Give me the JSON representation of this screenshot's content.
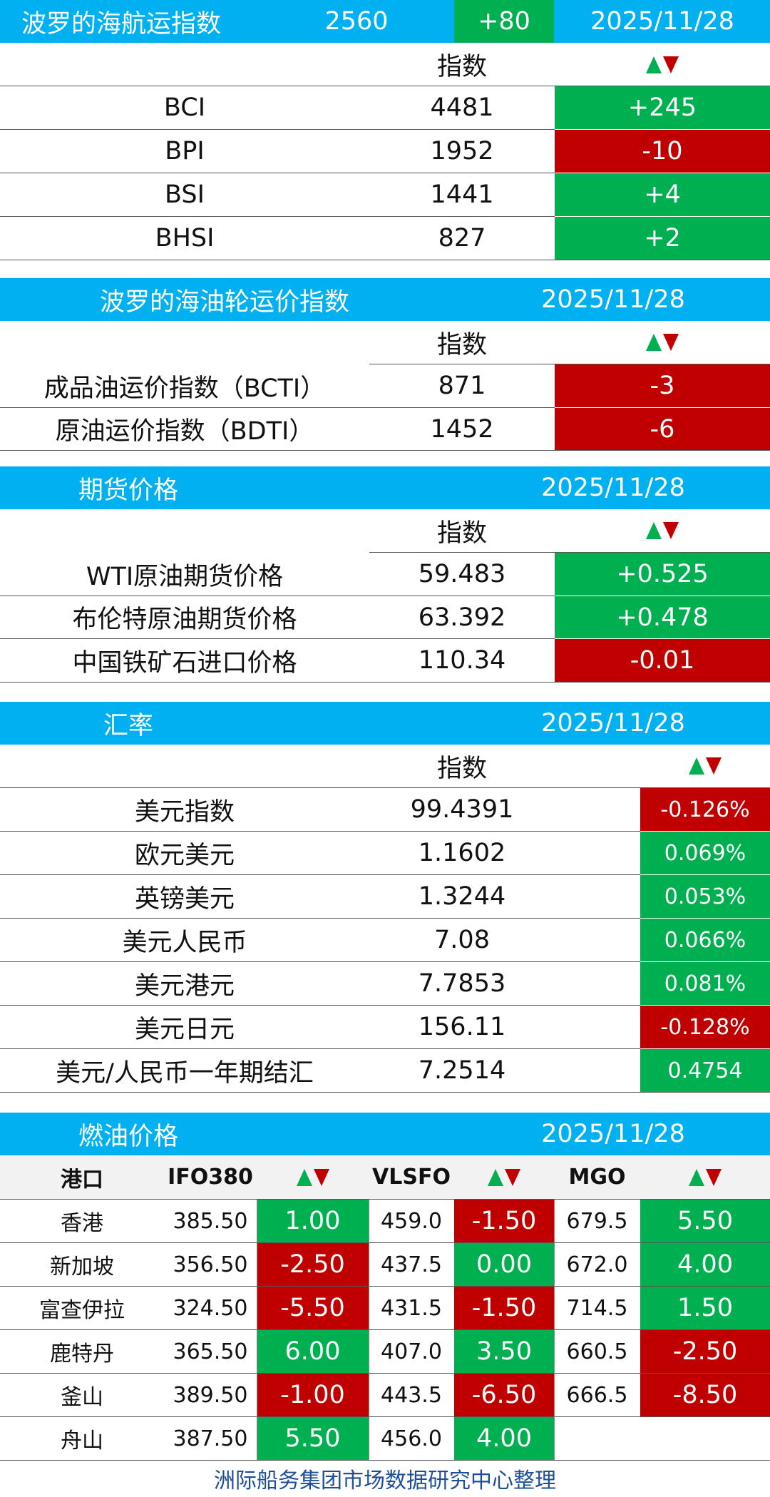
{
  "colors": {
    "header_bg": "#00b0f0",
    "up": "#00b050",
    "down": "#c00000",
    "footer_text": "#1f4e99"
  },
  "icons": {
    "change_indicator": "up-down-triangles-icon"
  },
  "column_label_index": "指数",
  "baltic_dry": {
    "title": "波罗的海航运指数",
    "value": "2560",
    "change": "+80",
    "date": "2025/11/28",
    "rows": [
      {
        "name": "BCI",
        "value": "4481",
        "change": "+245"
      },
      {
        "name": "BPI",
        "value": "1952",
        "change": "-10"
      },
      {
        "name": "BSI",
        "value": "1441",
        "change": "+4"
      },
      {
        "name": "BHSI",
        "value": "827",
        "change": "+2"
      }
    ]
  },
  "tanker": {
    "title": "波罗的海油轮运价指数",
    "date": "2025/11/28",
    "rows": [
      {
        "name": "成品油运价指数（BCTI）",
        "value": "871",
        "change": "-3"
      },
      {
        "name": "原油运价指数（BDTI）",
        "value": "1452",
        "change": "-6"
      }
    ]
  },
  "futures": {
    "title": "期货价格",
    "date": "2025/11/28",
    "rows": [
      {
        "name": "WTI原油期货价格",
        "value": "59.483",
        "change": "+0.525"
      },
      {
        "name": "布伦特原油期货价格",
        "value": "63.392",
        "change": "+0.478"
      },
      {
        "name": "中国铁矿石进口价格",
        "value": "110.34",
        "change": "-0.01"
      }
    ]
  },
  "fx": {
    "title": "汇率",
    "date": "2025/11/28",
    "rows": [
      {
        "name": "美元指数",
        "value": "99.4391",
        "change": "-0.126%"
      },
      {
        "name": "欧元美元",
        "value": "1.1602",
        "change": "0.069%"
      },
      {
        "name": "英镑美元",
        "value": "1.3244",
        "change": "0.053%"
      },
      {
        "name": "美元人民币",
        "value": "7.08",
        "change": "0.066%"
      },
      {
        "name": "美元港元",
        "value": "7.7853",
        "change": "0.081%"
      },
      {
        "name": "美元日元",
        "value": "156.11",
        "change": "-0.128%"
      },
      {
        "name": "美元/人民币一年期结汇",
        "value": "7.2514",
        "change": "0.4754"
      }
    ]
  },
  "bunker": {
    "title": "燃油价格",
    "date": "2025/11/28",
    "headers": {
      "port": "港口",
      "ifo": "IFO380",
      "vlsfo": "VLSFO",
      "mgo": "MGO"
    },
    "rows": [
      {
        "port": "香港",
        "ifo": "385.50",
        "ifo_chg": "1.00",
        "vlsfo": "459.0",
        "vlsfo_chg": "-1.50",
        "mgo": "679.5",
        "mgo_chg": "5.50"
      },
      {
        "port": "新加坡",
        "ifo": "356.50",
        "ifo_chg": "-2.50",
        "vlsfo": "437.5",
        "vlsfo_chg": "0.00",
        "mgo": "672.0",
        "mgo_chg": "4.00"
      },
      {
        "port": "富查伊拉",
        "ifo": "324.50",
        "ifo_chg": "-5.50",
        "vlsfo": "431.5",
        "vlsfo_chg": "-1.50",
        "mgo": "714.5",
        "mgo_chg": "1.50"
      },
      {
        "port": "鹿特丹",
        "ifo": "365.50",
        "ifo_chg": "6.00",
        "vlsfo": "407.0",
        "vlsfo_chg": "3.50",
        "mgo": "660.5",
        "mgo_chg": "-2.50"
      },
      {
        "port": "釜山",
        "ifo": "389.50",
        "ifo_chg": "-1.00",
        "vlsfo": "443.5",
        "vlsfo_chg": "-6.50",
        "mgo": "666.5",
        "mgo_chg": "-8.50"
      },
      {
        "port": "舟山",
        "ifo": "387.50",
        "ifo_chg": "5.50",
        "vlsfo": "456.0",
        "vlsfo_chg": "4.00",
        "mgo": "",
        "mgo_chg": ""
      }
    ]
  },
  "footer": "洲际船务集团市场数据研究中心整理"
}
